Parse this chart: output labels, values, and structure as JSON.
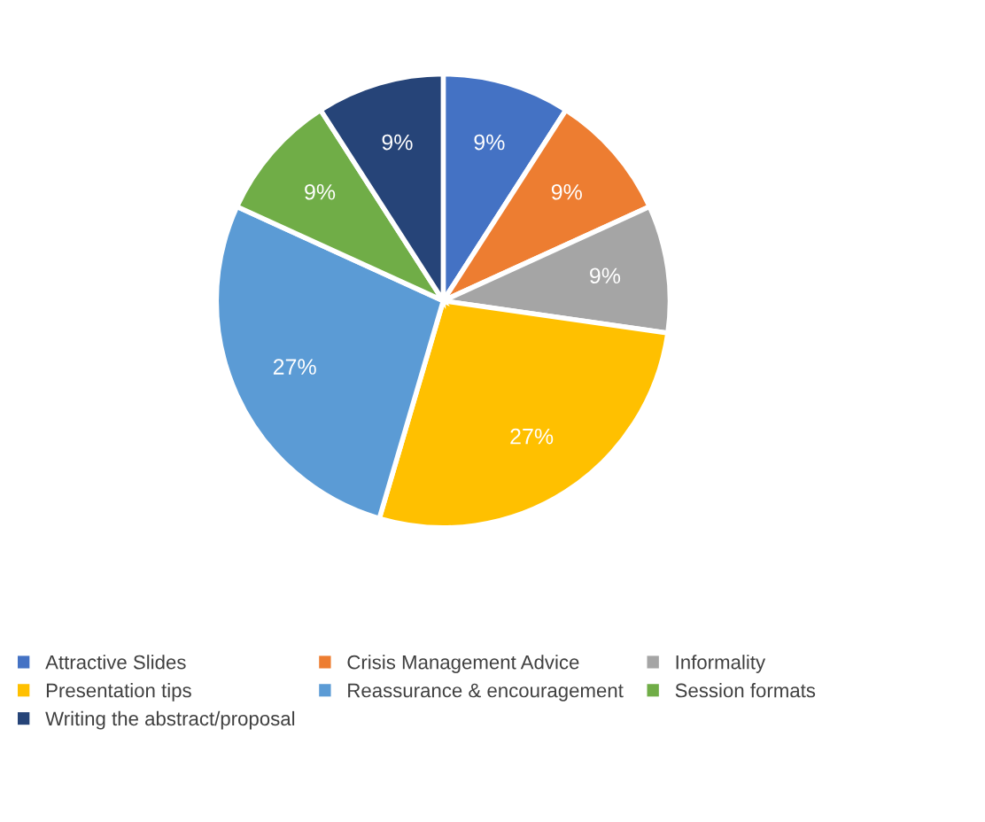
{
  "chart_data": {
    "type": "pie",
    "categories": [
      "Attractive Slides",
      "Crisis Management Advice",
      "Informality",
      "Presentation tips",
      "Reassurance & encouragement",
      "Session formats",
      "Writing the abstract/proposal"
    ],
    "values": [
      9,
      9,
      9,
      27,
      27,
      9,
      9
    ],
    "value_labels": [
      "9%",
      "9%",
      "9%",
      "27%",
      "27%",
      "9%",
      "9%"
    ],
    "colors": [
      "#4472c4",
      "#ed7d31",
      "#a5a5a5",
      "#ffc000",
      "#5b9bd5",
      "#70ad47",
      "#264478"
    ],
    "legend": "bottom"
  }
}
